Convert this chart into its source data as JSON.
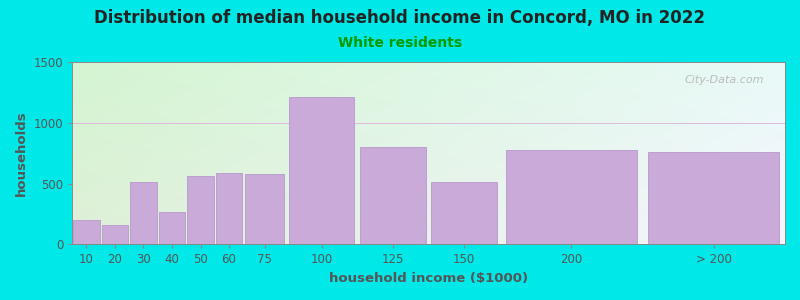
{
  "title": "Distribution of median household income in Concord, MO in 2022",
  "subtitle": "White residents",
  "xlabel": "household income ($1000)",
  "ylabel": "households",
  "categories": [
    "10",
    "20",
    "30",
    "40",
    "50",
    "60",
    "75",
    "100",
    "125",
    "150",
    "200",
    "> 200"
  ],
  "left_edges": [
    0,
    10,
    20,
    30,
    40,
    50,
    60,
    75,
    100,
    125,
    150,
    200
  ],
  "widths": [
    10,
    10,
    10,
    10,
    10,
    10,
    15,
    25,
    25,
    25,
    50,
    50
  ],
  "values": [
    200,
    160,
    510,
    270,
    565,
    590,
    580,
    1210,
    800,
    510,
    780,
    760
  ],
  "bar_color": "#c9aad8",
  "bar_edge_color": "#b898cc",
  "bg_color": "#00e8e8",
  "plot_bg_left_color": "#dff0d8",
  "plot_bg_right_color": "#f5f5ff",
  "title_color": "#222222",
  "subtitle_color": "#009900",
  "axis_color": "#555555",
  "tick_color": "#555555",
  "ylim": [
    0,
    1500
  ],
  "yticks": [
    0,
    500,
    1000,
    1500
  ],
  "tick_labels_x": [
    "10",
    "20",
    "30",
    "40",
    "50",
    "60",
    "75",
    "100",
    "125",
    "150",
    "200",
    "> 200"
  ],
  "watermark": "City-Data.com",
  "title_fontsize": 12,
  "subtitle_fontsize": 10,
  "label_fontsize": 9.5,
  "tick_fontsize": 8.5,
  "watermark_fontsize": 8
}
